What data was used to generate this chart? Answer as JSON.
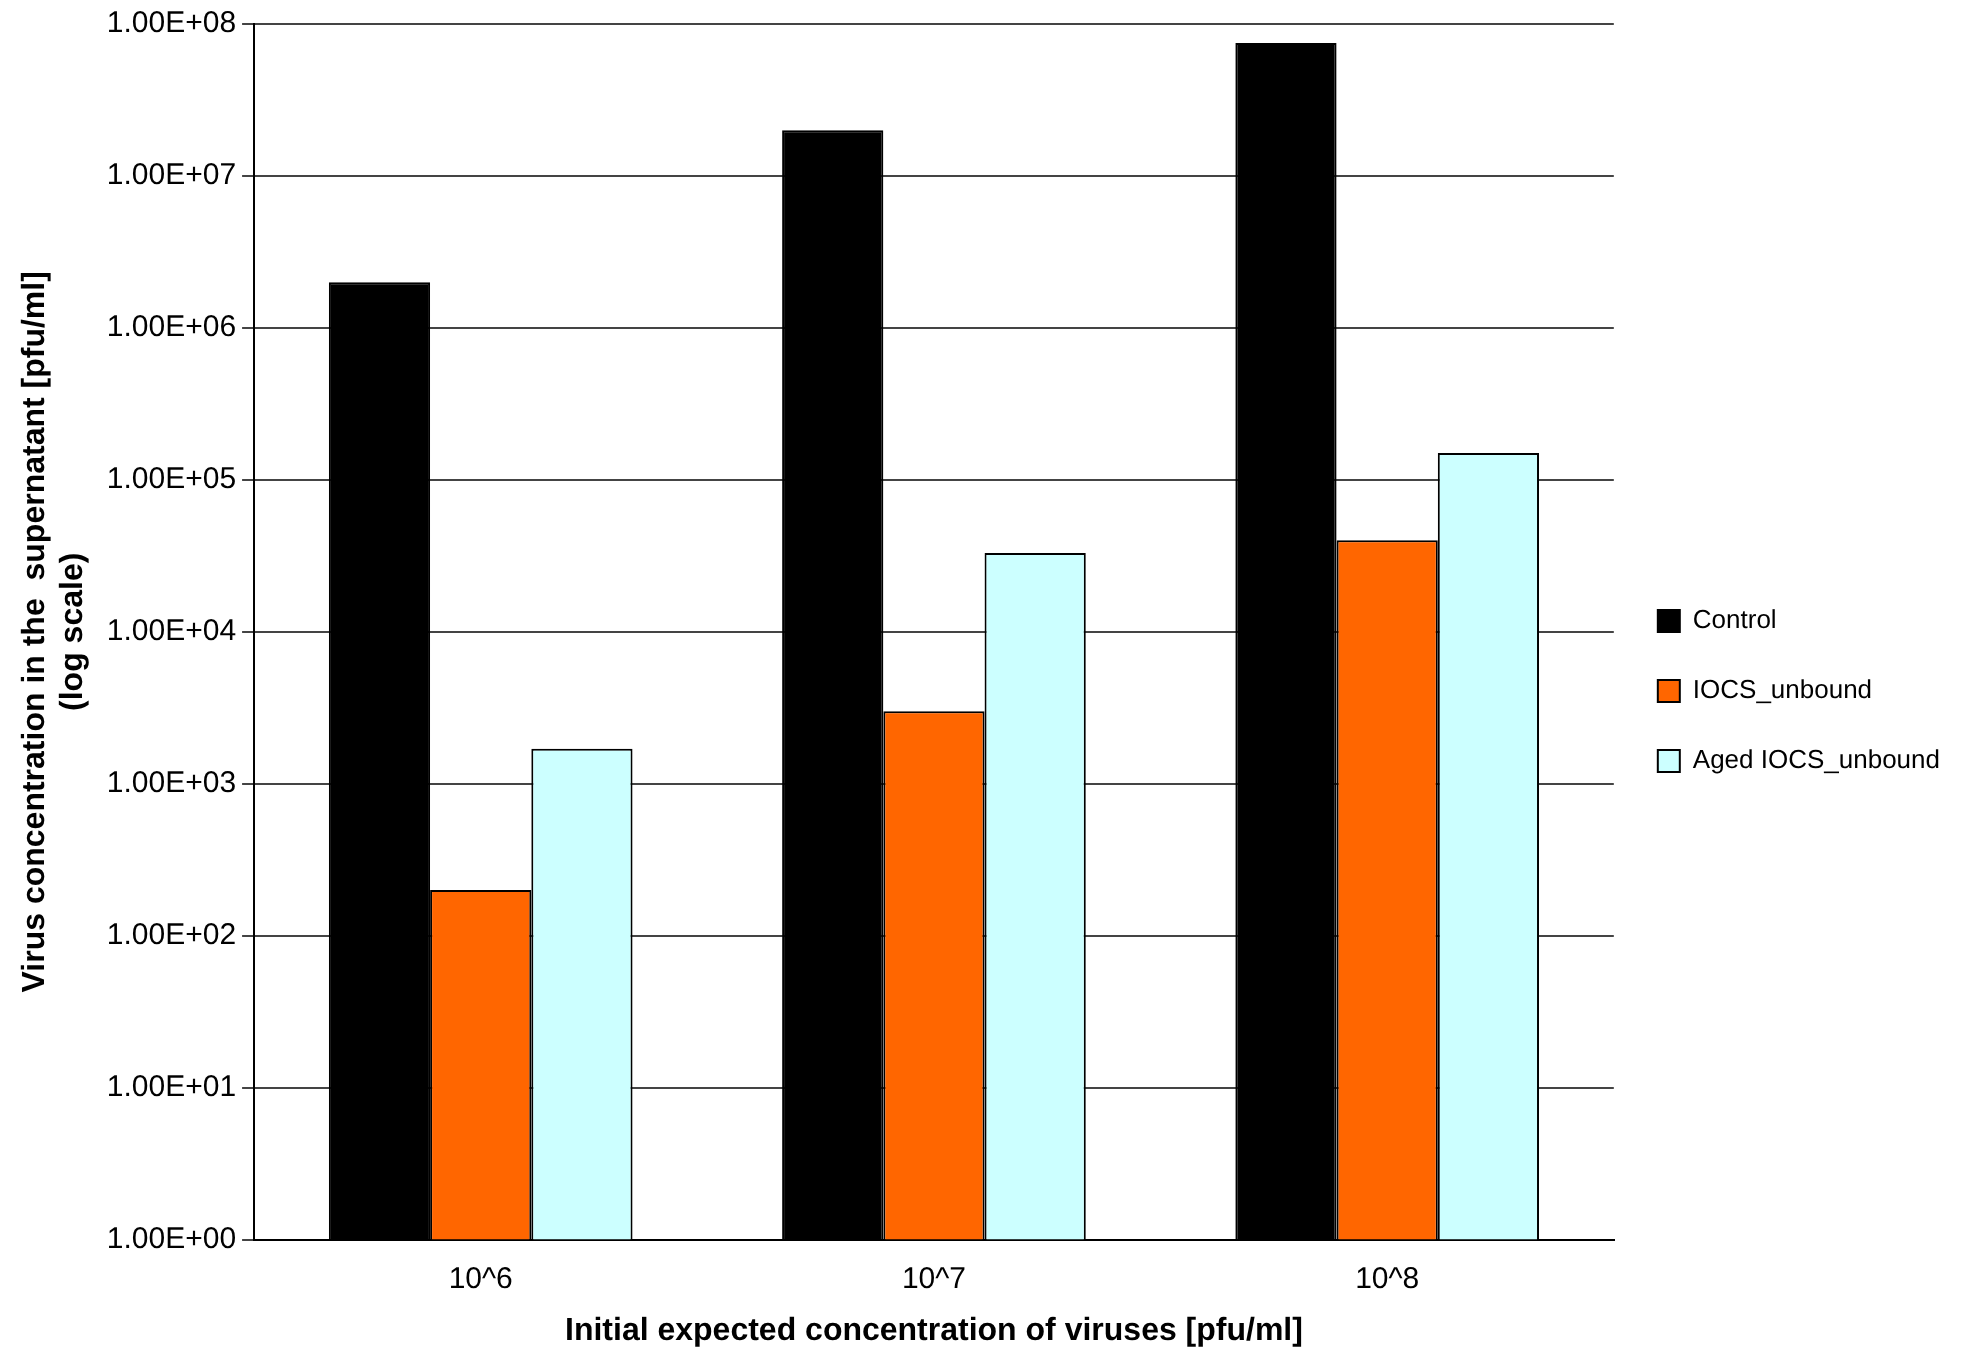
{
  "chart_data": {
    "type": "bar",
    "xlabel": "Initial expected concentration of viruses [pfu/ml]",
    "ylabel": "Virus concentration in the  supernatant [pfu/ml]\n(log scale)",
    "categories": [
      "10^6",
      "10^7",
      "10^8"
    ],
    "series": [
      {
        "name": "Control",
        "color": "#000000",
        "values": [
          2000000,
          20000000,
          75000000
        ]
      },
      {
        "name": "IOCS_unbound",
        "color": "#ff6600",
        "values": [
          200,
          3000,
          40000
        ]
      },
      {
        "name": "Aged IOCS_unbound",
        "color": "#ccffff",
        "values": [
          1700,
          33000,
          150000
        ]
      }
    ],
    "log": "y",
    "ylim": [
      1,
      100000000
    ],
    "yticks": [
      {
        "value": 1,
        "label": "1.00E+00"
      },
      {
        "value": 10,
        "label": "1.00E+01"
      },
      {
        "value": 100,
        "label": "1.00E+02"
      },
      {
        "value": 1000,
        "label": "1.00E+03"
      },
      {
        "value": 10000,
        "label": "1.00E+04"
      },
      {
        "value": 100000,
        "label": "1.00E+05"
      },
      {
        "value": 1000000,
        "label": "1.00E+06"
      },
      {
        "value": 10000000,
        "label": "1.00E+07"
      },
      {
        "value": 100000000,
        "label": "1.00E+08"
      }
    ],
    "grid": "y",
    "legend": "right"
  }
}
